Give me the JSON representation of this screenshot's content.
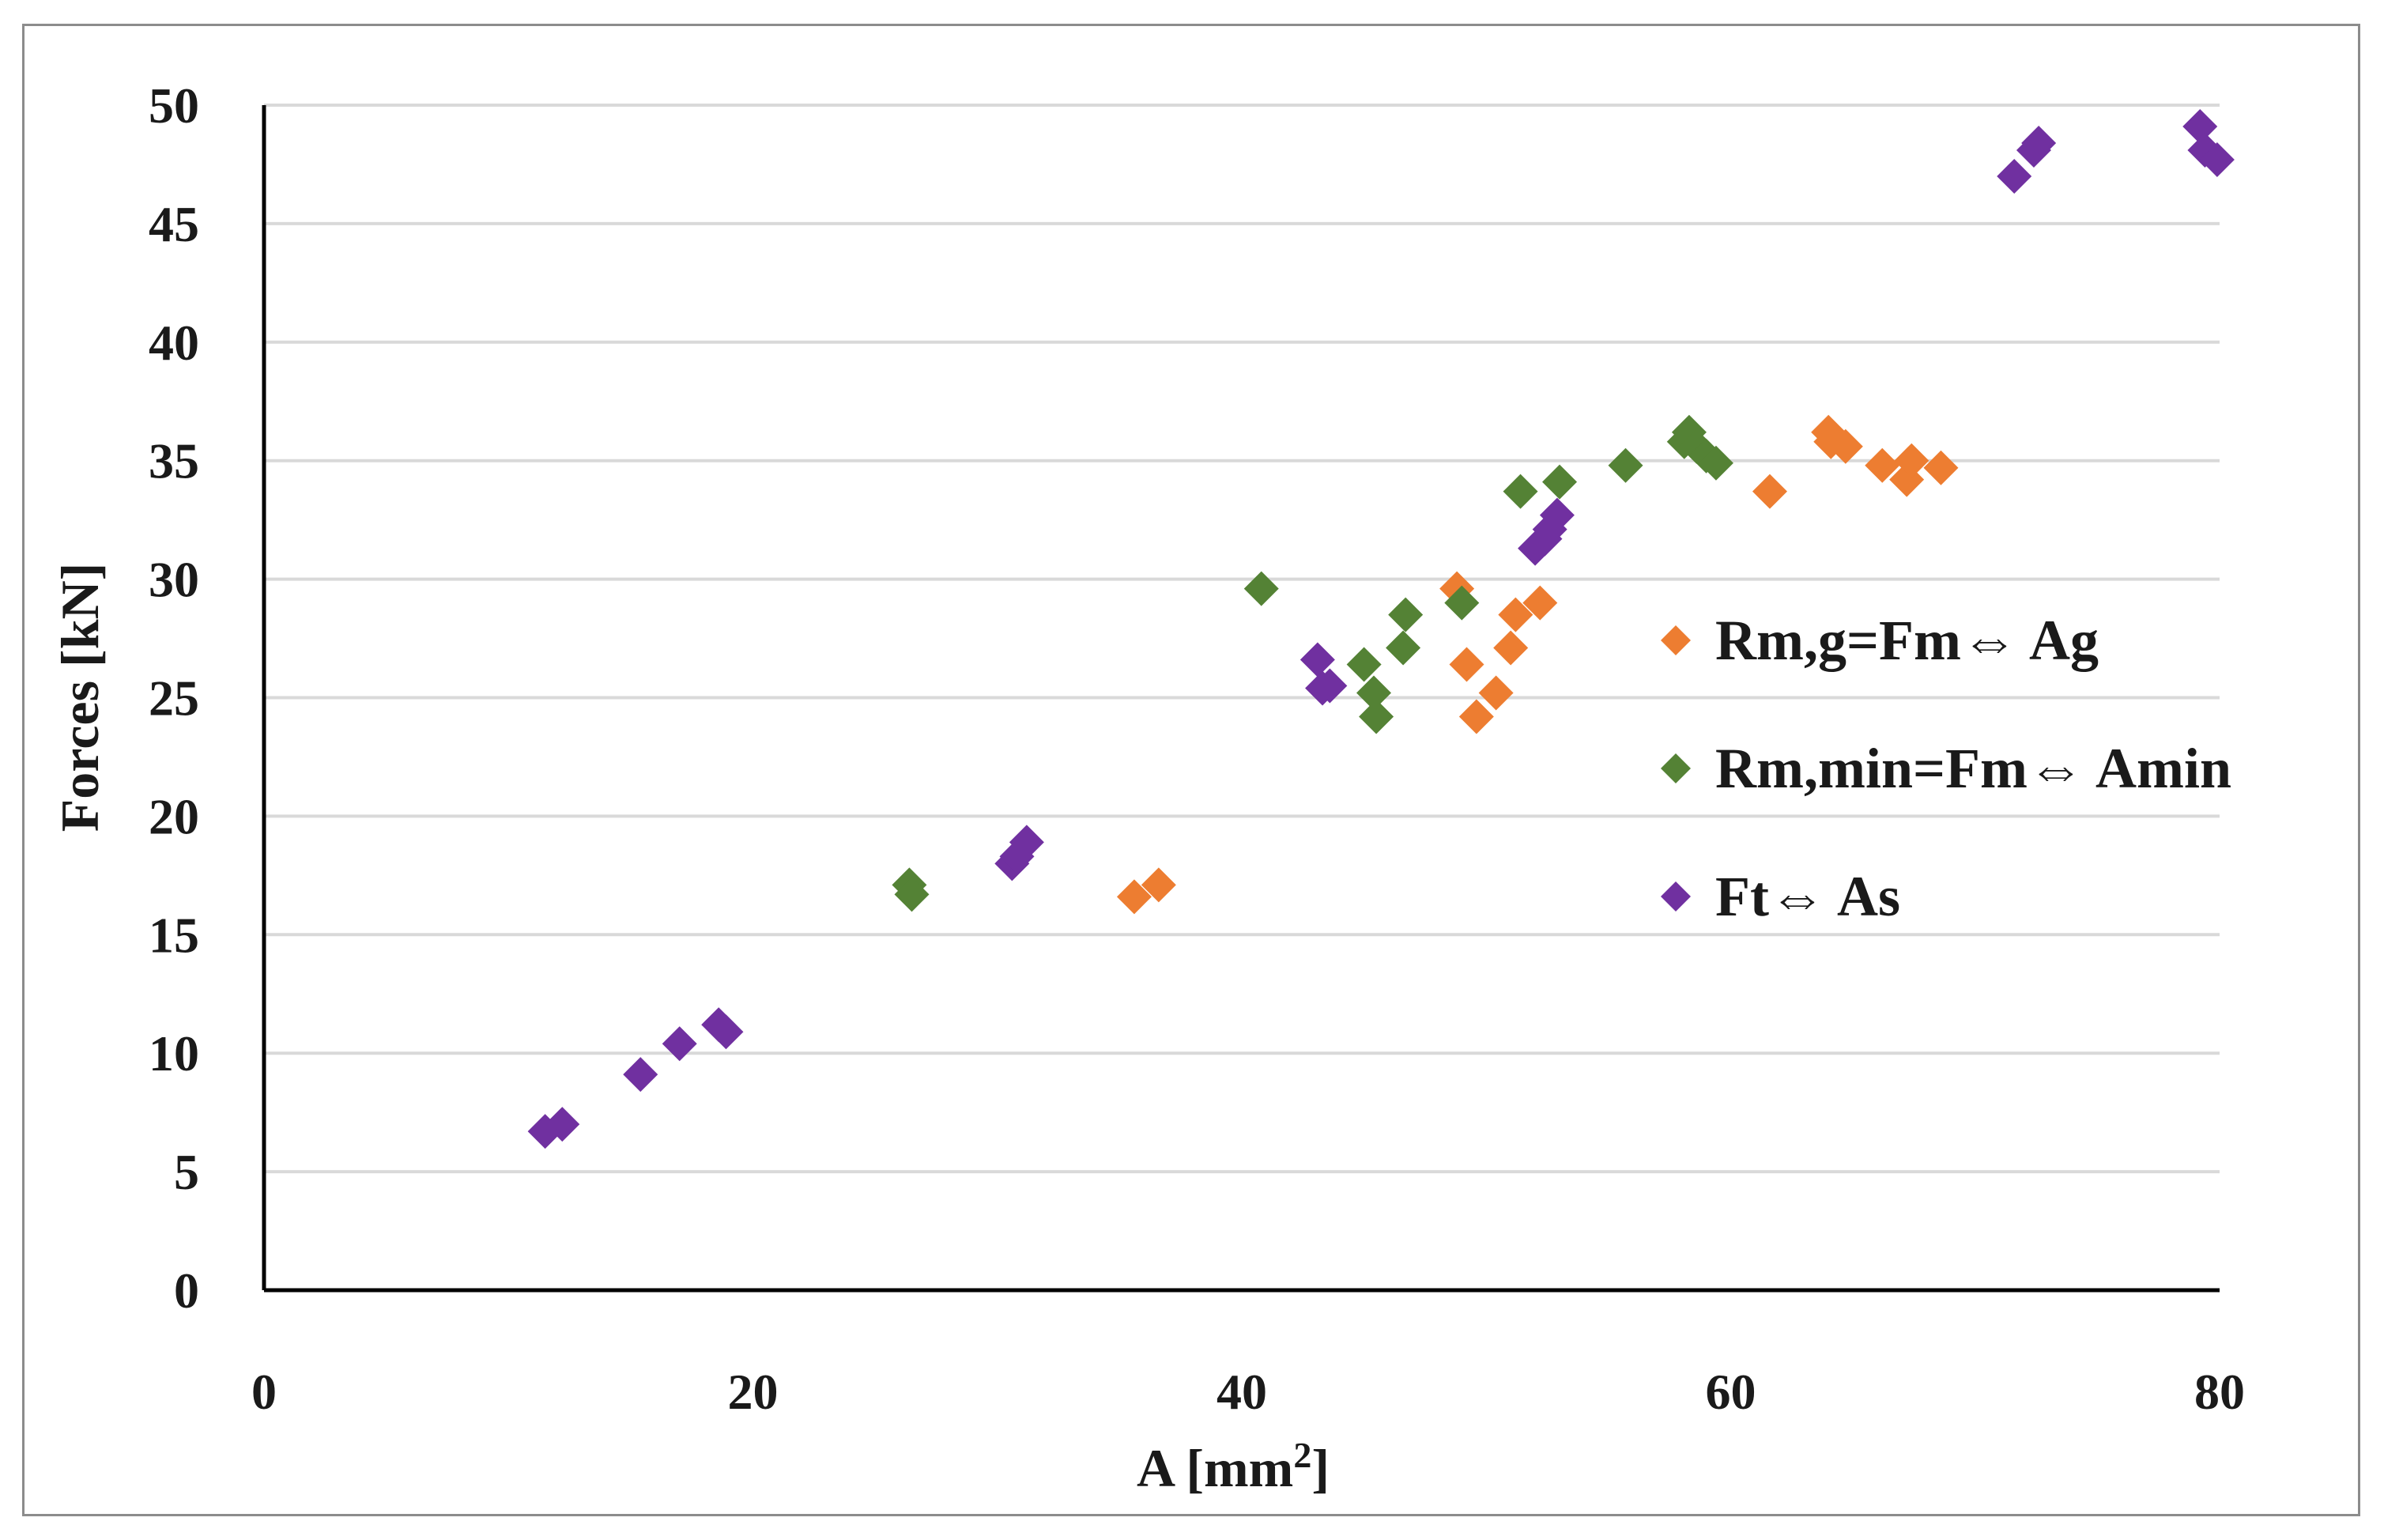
{
  "chart_data": {
    "type": "scatter",
    "title": "",
    "xlabel": "A [mm",
    "xlabel_superscript": "2",
    "xlabel_suffix": "]",
    "ylabel": "Forces [kN]",
    "xlim": [
      0,
      80
    ],
    "ylim": [
      0,
      50
    ],
    "x_ticks": [
      0,
      20,
      40,
      60,
      80
    ],
    "y_ticks": [
      0,
      5,
      10,
      15,
      20,
      25,
      30,
      35,
      40,
      45,
      50
    ],
    "grid": "horizontal",
    "legend_position": "right",
    "marker": "diamond",
    "series": [
      {
        "name": "Rm,g=Fm⇔ Ag",
        "color": "#ED7D31",
        "points": [
          [
            35.6,
            16.6
          ],
          [
            36.6,
            17.1
          ],
          [
            48.8,
            29.6
          ],
          [
            49.2,
            26.4
          ],
          [
            49.6,
            24.2
          ],
          [
            50.4,
            25.2
          ],
          [
            51.0,
            27.1
          ],
          [
            51.2,
            28.5
          ],
          [
            52.2,
            29.0
          ],
          [
            61.6,
            33.7
          ],
          [
            64.0,
            36.2
          ],
          [
            64.1,
            35.8
          ],
          [
            64.7,
            35.6
          ],
          [
            66.2,
            34.8
          ],
          [
            67.2,
            34.2
          ],
          [
            67.4,
            35.0
          ],
          [
            68.6,
            34.7
          ]
        ]
      },
      {
        "name": "Rm,min=Fm⇔ Amin",
        "color": "#548235",
        "points": [
          [
            26.4,
            17.1
          ],
          [
            26.5,
            16.7
          ],
          [
            40.8,
            29.6
          ],
          [
            45.0,
            26.4
          ],
          [
            45.4,
            25.2
          ],
          [
            45.5,
            24.2
          ],
          [
            46.6,
            27.1
          ],
          [
            46.7,
            28.5
          ],
          [
            49.0,
            29.0
          ],
          [
            51.4,
            33.7
          ],
          [
            53.0,
            34.1
          ],
          [
            55.7,
            34.8
          ],
          [
            58.1,
            35.8
          ],
          [
            58.3,
            36.2
          ],
          [
            58.6,
            35.6
          ],
          [
            59.0,
            35.2
          ],
          [
            59.4,
            34.9
          ]
        ]
      },
      {
        "name": "Ft⇔ As",
        "color": "#7030A0",
        "points": [
          [
            11.5,
            6.7
          ],
          [
            12.2,
            7.0
          ],
          [
            15.4,
            9.1
          ],
          [
            17.0,
            10.4
          ],
          [
            18.6,
            11.2
          ],
          [
            18.9,
            10.9
          ],
          [
            30.6,
            18.0
          ],
          [
            30.8,
            18.3
          ],
          [
            31.2,
            18.9
          ],
          [
            43.1,
            26.6
          ],
          [
            43.3,
            25.4
          ],
          [
            43.6,
            25.5
          ],
          [
            52.0,
            31.3
          ],
          [
            52.4,
            31.7
          ],
          [
            52.6,
            32.1
          ],
          [
            52.9,
            32.7
          ],
          [
            71.6,
            47.0
          ],
          [
            72.4,
            48.1
          ],
          [
            72.6,
            48.4
          ],
          [
            79.2,
            49.1
          ],
          [
            79.4,
            48.1
          ],
          [
            79.9,
            47.7
          ]
        ]
      }
    ]
  }
}
